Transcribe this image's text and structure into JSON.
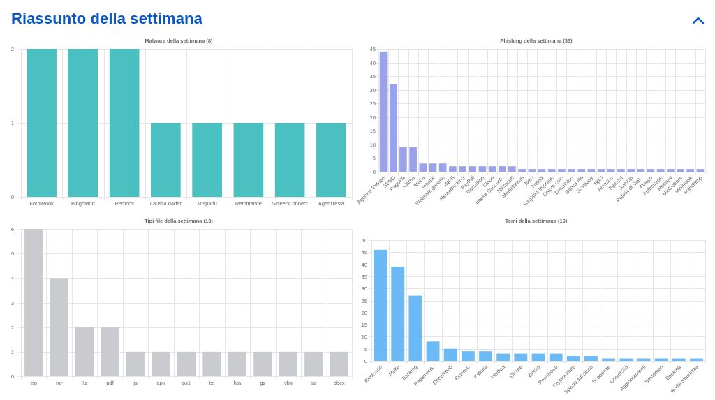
{
  "header": {
    "title": "Riassunto della settimana",
    "collapse_icon": "chevron-up-icon",
    "accent_color": "#0a57c2"
  },
  "chart_data": [
    {
      "id": "malware",
      "type": "bar",
      "title": "Malware della settimana (8)",
      "color": "#4bc0c0",
      "categories": [
        "FormBook",
        "BingoMod",
        "Remcos",
        "LausivLoader",
        "Mispadu",
        "Remittance",
        "ScreenConnect",
        "AgentTesla"
      ],
      "values": [
        2,
        2,
        2,
        1,
        1,
        1,
        1,
        1
      ],
      "ylim": [
        0,
        2
      ],
      "yticks": [
        0,
        1,
        2
      ],
      "grid": true,
      "rotate_labels": false
    },
    {
      "id": "phishing",
      "type": "bar",
      "title": "Phishing della settimana (33)",
      "color": "#9aa3ea",
      "categories": [
        "Agenzia Entrate",
        "SEND",
        "PagoPA",
        "Klarna",
        "Aruba",
        "Inbank",
        "Webmail generic",
        "INPS",
        "RelaxBanking",
        "PayPal",
        "DocuSign",
        "Cloud",
        "Intesa Sanpaolo",
        "Microsoft",
        "Mediolanum",
        "Nexi",
        "Netflix",
        "Registro Imprese",
        "Crypto.com",
        "Decathlon",
        "Banca Ifis",
        "Scalapay",
        "Spid",
        "Amazon",
        "Tophost",
        "SumUp",
        "Polizia di Stato",
        "Fineco",
        "Autostrade",
        "Mooney",
        "MioDottore",
        "Mailmask",
        "Mailchimp"
      ],
      "values": [
        44,
        32,
        9,
        9,
        3,
        3,
        3,
        2,
        2,
        2,
        2,
        2,
        2,
        2,
        1,
        1,
        1,
        1,
        1,
        1,
        1,
        1,
        1,
        1,
        1,
        1,
        1,
        1,
        1,
        1,
        1,
        1,
        1
      ],
      "ylim": [
        0,
        45
      ],
      "yticks": [
        0,
        5,
        10,
        15,
        20,
        25,
        30,
        35,
        40,
        45
      ],
      "grid": true,
      "rotate_labels": true
    },
    {
      "id": "filetypes",
      "type": "bar",
      "title": "Tipi file della settimana (13)",
      "color": "#c9cbcf",
      "categories": [
        "zip",
        "rar",
        "7z",
        "pdf",
        "js",
        "apk",
        "ps1",
        "txt",
        "hta",
        "gz",
        "vbs",
        "tar",
        "docx"
      ],
      "values": [
        6,
        4,
        2,
        2,
        1,
        1,
        1,
        1,
        1,
        1,
        1,
        1,
        1
      ],
      "ylim": [
        0,
        6
      ],
      "yticks": [
        0,
        1,
        2,
        3,
        4,
        5,
        6
      ],
      "grid": true,
      "rotate_labels": false
    },
    {
      "id": "themes",
      "type": "bar",
      "title": "Temi della settimana (19)",
      "color": "#6bbaf6",
      "categories": [
        "Rimborso",
        "Multe",
        "Banking",
        "Pagamento",
        "Documenti",
        "Rinnovo",
        "Fattura",
        "Verifica",
        "Ordine",
        "Vincita",
        "Preventivo",
        "Cryptovalute",
        "Spazio sul disco",
        "Scadenze",
        "Università",
        "Aggiornamenti",
        "Sextortion",
        "Booking",
        "Avvisi sicurezza"
      ],
      "values": [
        46,
        39,
        27,
        8,
        5,
        4,
        4,
        3,
        3,
        3,
        3,
        2,
        2,
        1,
        1,
        1,
        1,
        1,
        1
      ],
      "ylim": [
        0,
        50
      ],
      "yticks": [
        0,
        5,
        10,
        15,
        20,
        25,
        30,
        35,
        40,
        45,
        50
      ],
      "grid": true,
      "rotate_labels": true
    }
  ]
}
